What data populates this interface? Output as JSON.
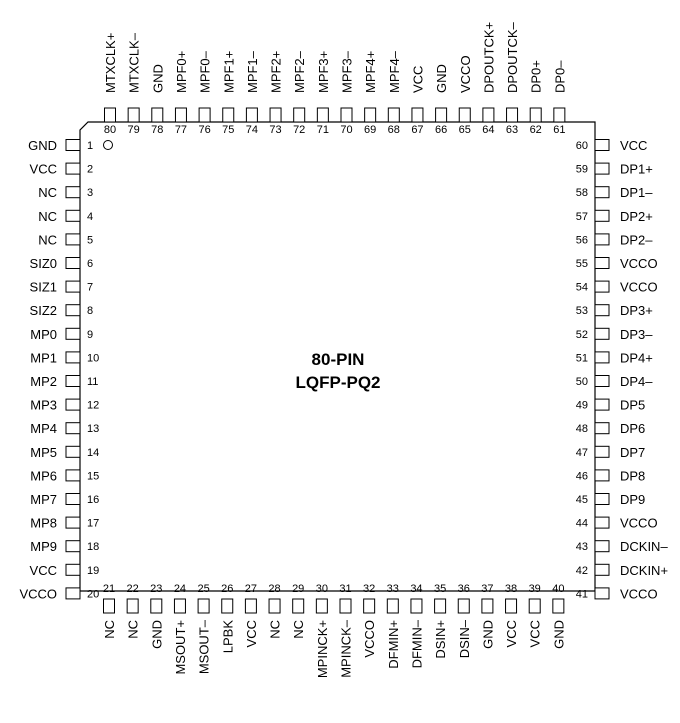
{
  "package": {
    "title_line1": "80-PIN",
    "title_line2": "LQFP-PQ2"
  },
  "pins": {
    "left": [
      {
        "num": "1",
        "name": "GND"
      },
      {
        "num": "2",
        "name": "VCC"
      },
      {
        "num": "3",
        "name": "NC"
      },
      {
        "num": "4",
        "name": "NC"
      },
      {
        "num": "5",
        "name": "NC"
      },
      {
        "num": "6",
        "name": "SIZ0"
      },
      {
        "num": "7",
        "name": "SIZ1"
      },
      {
        "num": "8",
        "name": "SIZ2"
      },
      {
        "num": "9",
        "name": "MP0"
      },
      {
        "num": "10",
        "name": "MP1"
      },
      {
        "num": "11",
        "name": "MP2"
      },
      {
        "num": "12",
        "name": "MP3"
      },
      {
        "num": "13",
        "name": "MP4"
      },
      {
        "num": "14",
        "name": "MP5"
      },
      {
        "num": "15",
        "name": "MP6"
      },
      {
        "num": "16",
        "name": "MP7"
      },
      {
        "num": "17",
        "name": "MP8"
      },
      {
        "num": "18",
        "name": "MP9"
      },
      {
        "num": "19",
        "name": "VCC"
      },
      {
        "num": "20",
        "name": "VCCO"
      }
    ],
    "bottom": [
      {
        "num": "21",
        "name": "NC"
      },
      {
        "num": "22",
        "name": "NC"
      },
      {
        "num": "23",
        "name": "GND"
      },
      {
        "num": "24",
        "name": "MSOUT+"
      },
      {
        "num": "25",
        "name": "MSOUT–"
      },
      {
        "num": "26",
        "name": "LPBK"
      },
      {
        "num": "27",
        "name": "VCC"
      },
      {
        "num": "28",
        "name": "NC"
      },
      {
        "num": "29",
        "name": "NC"
      },
      {
        "num": "30",
        "name": "MPINCK+"
      },
      {
        "num": "31",
        "name": "MPINCK–"
      },
      {
        "num": "32",
        "name": "VCCO"
      },
      {
        "num": "33",
        "name": "DFMIN+"
      },
      {
        "num": "34",
        "name": "DFMIN–"
      },
      {
        "num": "35",
        "name": "DSIN+"
      },
      {
        "num": "36",
        "name": "DSIN–"
      },
      {
        "num": "37",
        "name": "GND"
      },
      {
        "num": "38",
        "name": "VCC"
      },
      {
        "num": "39",
        "name": "VCC"
      },
      {
        "num": "40",
        "name": "GND"
      }
    ],
    "right": [
      {
        "num": "60",
        "name": "VCC"
      },
      {
        "num": "59",
        "name": "DP1+"
      },
      {
        "num": "58",
        "name": "DP1–"
      },
      {
        "num": "57",
        "name": "DP2+"
      },
      {
        "num": "56",
        "name": "DP2–"
      },
      {
        "num": "55",
        "name": "VCCO"
      },
      {
        "num": "54",
        "name": "VCCO"
      },
      {
        "num": "53",
        "name": "DP3+"
      },
      {
        "num": "52",
        "name": "DP3–"
      },
      {
        "num": "51",
        "name": "DP4+"
      },
      {
        "num": "50",
        "name": "DP4–"
      },
      {
        "num": "49",
        "name": "DP5"
      },
      {
        "num": "48",
        "name": "DP6"
      },
      {
        "num": "47",
        "name": "DP7"
      },
      {
        "num": "46",
        "name": "DP8"
      },
      {
        "num": "45",
        "name": "DP9"
      },
      {
        "num": "44",
        "name": "VCCO"
      },
      {
        "num": "43",
        "name": "DCKIN–"
      },
      {
        "num": "42",
        "name": "DCKIN+"
      },
      {
        "num": "41",
        "name": "VCCO"
      }
    ],
    "top": [
      {
        "num": "80",
        "name": "MTXCLK+"
      },
      {
        "num": "79",
        "name": "MTXCLK–"
      },
      {
        "num": "78",
        "name": "GND"
      },
      {
        "num": "77",
        "name": "MPF0+"
      },
      {
        "num": "76",
        "name": "MPF0–"
      },
      {
        "num": "75",
        "name": "MPF1+"
      },
      {
        "num": "74",
        "name": "MPF1–"
      },
      {
        "num": "73",
        "name": "MPF2+"
      },
      {
        "num": "72",
        "name": "MPF2–"
      },
      {
        "num": "71",
        "name": "MPF3+"
      },
      {
        "num": "70",
        "name": "MPF3–"
      },
      {
        "num": "69",
        "name": "MPF4+"
      },
      {
        "num": "68",
        "name": "MPF4–"
      },
      {
        "num": "67",
        "name": "VCC"
      },
      {
        "num": "66",
        "name": "GND"
      },
      {
        "num": "65",
        "name": "VCCO"
      },
      {
        "num": "64",
        "name": "DPOUTCK+"
      },
      {
        "num": "63",
        "name": "DPOUTCK–"
      },
      {
        "num": "62",
        "name": "DP0+"
      },
      {
        "num": "61",
        "name": "DP0–"
      }
    ]
  }
}
